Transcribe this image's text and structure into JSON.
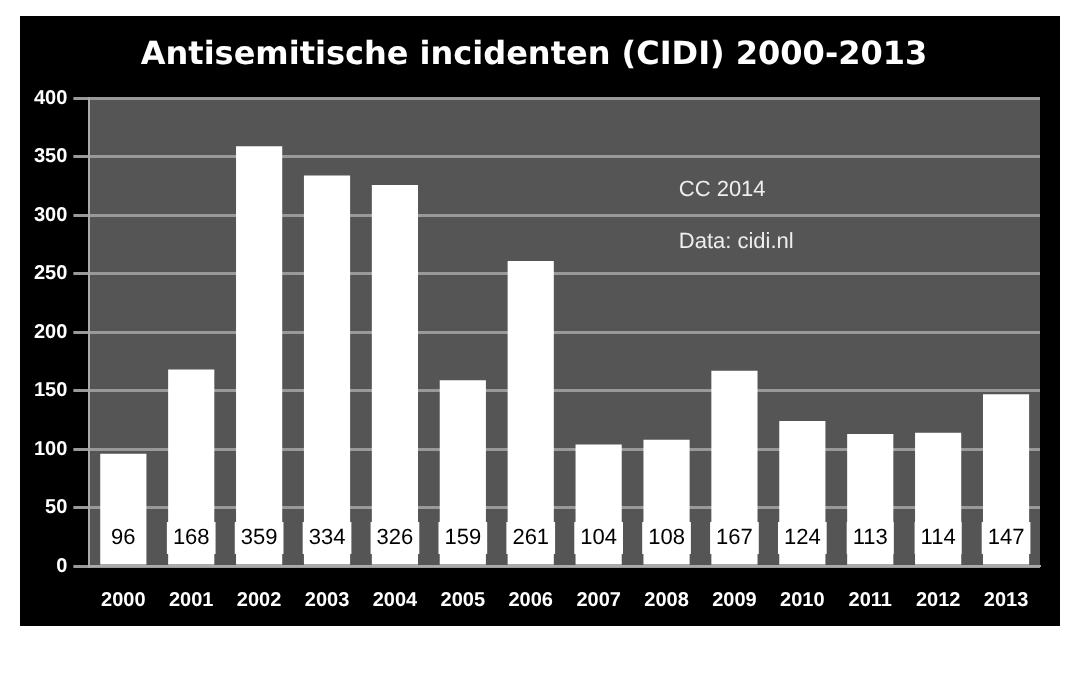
{
  "chart_data": {
    "type": "bar",
    "title": "Antisemitische incidenten (CIDI) 2000-2013",
    "categories": [
      "2000",
      "2001",
      "2002",
      "2003",
      "2004",
      "2005",
      "2006",
      "2007",
      "2008",
      "2009",
      "2010",
      "2011",
      "2012",
      "2013"
    ],
    "values": [
      96,
      168,
      359,
      334,
      326,
      159,
      261,
      104,
      108,
      167,
      124,
      113,
      114,
      147
    ],
    "color": "#ffffff",
    "ylim": [
      0,
      400
    ],
    "yticks": [
      0,
      50,
      100,
      150,
      200,
      250,
      300,
      350,
      400
    ],
    "grid": "y",
    "data_labels": true,
    "annotations": [
      "CC 2014",
      "Data: cidi.nl"
    ]
  }
}
